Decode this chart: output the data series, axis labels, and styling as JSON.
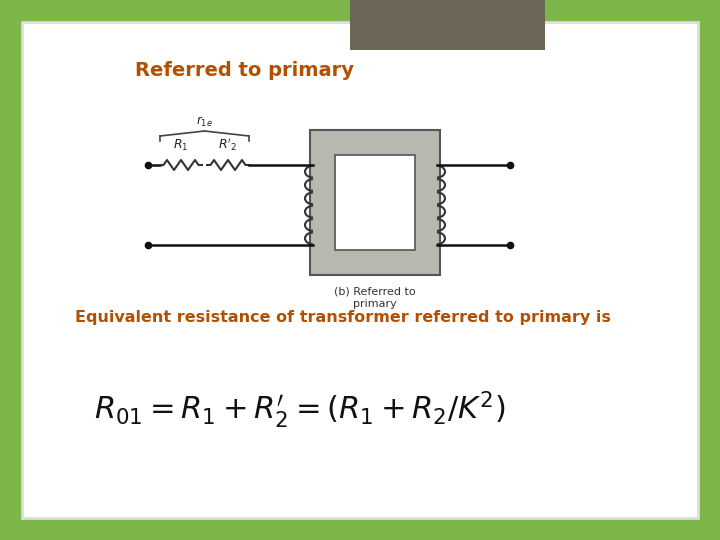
{
  "bg_outer_color": "#7cb648",
  "bg_inner_color": "#ffffff",
  "header_rect_color": "#6b6655",
  "title_text": "Referred to primary",
  "title_color": "#b35000",
  "title_fontsize": 14,
  "subtitle_text": "Equivalent resistance of transformer referred to primary is",
  "subtitle_color": "#b35000",
  "subtitle_fontsize": 11.5,
  "caption_text": "(b) Referred to\nprimary",
  "caption_fontsize": 8,
  "caption_color": "#333333",
  "wire_color": "#111111",
  "core_color": "#b8b8b0",
  "core_edge_color": "#555555",
  "coil_color": "#333333",
  "resistor_color": "#333333",
  "label_color": "#222222",
  "formula_color": "#111111",
  "formula_fontsize": 22
}
